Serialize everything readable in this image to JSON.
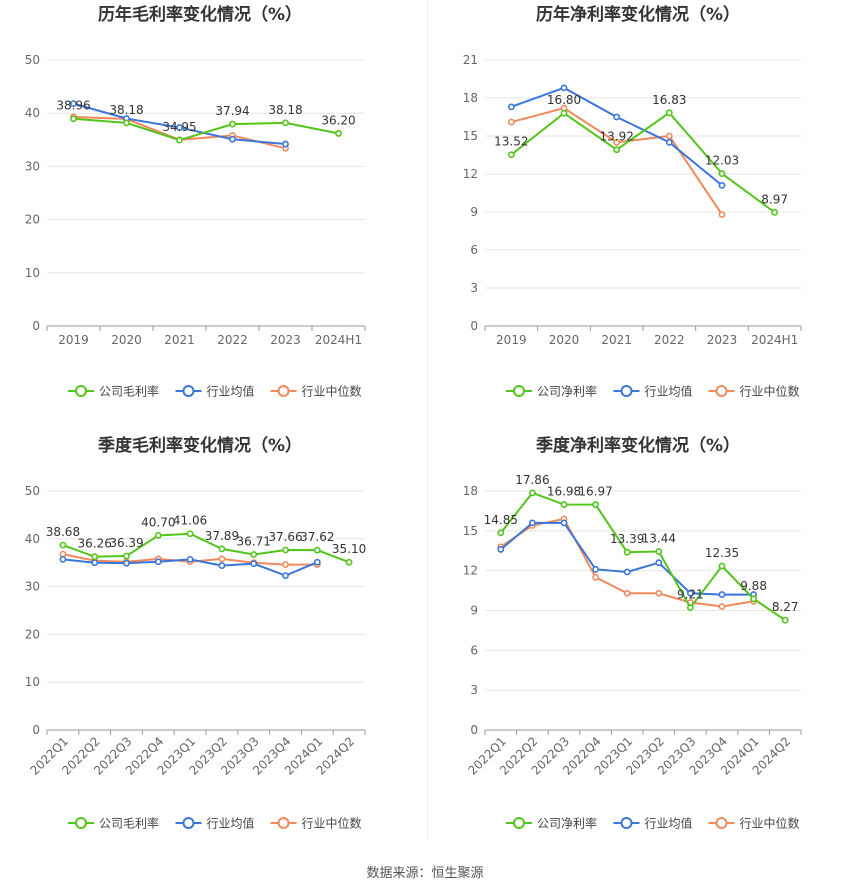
{
  "source_label": "数据来源：恒生聚源",
  "colors": {
    "company": "#52c41a",
    "avg": "#3a75d8",
    "median": "#f08a5d",
    "grid": "#e6e6e6",
    "axis": "#666666",
    "label": "#333333"
  },
  "chart_data": [
    {
      "id": "annual-gross",
      "type": "line",
      "title": "历年毛利率变化情况（%）",
      "categories": [
        "2019",
        "2020",
        "2021",
        "2022",
        "2023",
        "2024H1"
      ],
      "ylim": [
        0,
        50
      ],
      "yticks": [
        0,
        10,
        20,
        30,
        40,
        50
      ],
      "rotate_x": false,
      "series": [
        {
          "key": "company",
          "name": "公司毛利率",
          "values": [
            38.96,
            38.18,
            34.95,
            37.94,
            38.18,
            36.2
          ]
        },
        {
          "key": "avg",
          "name": "行业均值",
          "values": [
            41.8,
            39.0,
            37.3,
            35.1,
            34.2,
            null
          ]
        },
        {
          "key": "median",
          "name": "行业中位数",
          "values": [
            39.3,
            38.9,
            35.0,
            35.8,
            33.4,
            null
          ]
        }
      ],
      "data_labels": [
        "38.96",
        "38.18",
        "34.95",
        "37.94",
        "38.18",
        "36.20"
      ]
    },
    {
      "id": "annual-net",
      "type": "line",
      "title": "历年净利率变化情况（%）",
      "categories": [
        "2019",
        "2020",
        "2021",
        "2022",
        "2023",
        "2024H1"
      ],
      "ylim": [
        0,
        21
      ],
      "yticks": [
        0,
        3,
        6,
        9,
        12,
        15,
        18,
        21
      ],
      "rotate_x": false,
      "series": [
        {
          "key": "company",
          "name": "公司净利率",
          "values": [
            13.52,
            16.8,
            13.92,
            16.83,
            12.03,
            8.97
          ]
        },
        {
          "key": "avg",
          "name": "行业均值",
          "values": [
            17.3,
            18.8,
            16.5,
            14.5,
            11.1,
            null
          ]
        },
        {
          "key": "median",
          "name": "行业中位数",
          "values": [
            16.1,
            17.2,
            14.5,
            15.0,
            8.8,
            null
          ]
        }
      ],
      "data_labels": [
        "13.52",
        "16.80",
        "13.92",
        "16.83",
        "12.03",
        "8.97"
      ]
    },
    {
      "id": "quarterly-gross",
      "type": "line",
      "title": "季度毛利率变化情况（%）",
      "categories": [
        "2022Q1",
        "2022Q2",
        "2022Q3",
        "2022Q4",
        "2023Q1",
        "2023Q2",
        "2023Q3",
        "2023Q4",
        "2024Q1",
        "2024Q2"
      ],
      "ylim": [
        0,
        50
      ],
      "yticks": [
        0,
        10,
        20,
        30,
        40,
        50
      ],
      "rotate_x": true,
      "series": [
        {
          "key": "company",
          "name": "公司毛利率",
          "values": [
            38.68,
            36.26,
            36.39,
            40.7,
            41.06,
            37.89,
            36.71,
            37.66,
            37.62,
            35.1
          ]
        },
        {
          "key": "avg",
          "name": "行业均值",
          "values": [
            35.7,
            35.0,
            34.9,
            35.2,
            35.7,
            34.4,
            34.8,
            32.3,
            35.1,
            null
          ]
        },
        {
          "key": "median",
          "name": "行业中位数",
          "values": [
            36.8,
            35.4,
            35.2,
            35.8,
            35.2,
            35.8,
            35.0,
            34.6,
            34.6,
            null
          ]
        }
      ],
      "data_labels": [
        "38.68",
        "36.26",
        "36.39",
        "40.70",
        "41.06",
        "37.89",
        "36.71",
        "37.66",
        "37.62",
        "35.10"
      ]
    },
    {
      "id": "quarterly-net",
      "type": "line",
      "title": "季度净利率变化情况（%）",
      "categories": [
        "2022Q1",
        "2022Q2",
        "2022Q3",
        "2022Q4",
        "2023Q1",
        "2023Q2",
        "2023Q3",
        "2023Q4",
        "2024Q1",
        "2024Q2"
      ],
      "ylim": [
        0,
        18
      ],
      "yticks": [
        0,
        3,
        6,
        9,
        12,
        15,
        18
      ],
      "rotate_x": true,
      "series": [
        {
          "key": "company",
          "name": "公司净利率",
          "values": [
            14.85,
            17.86,
            16.98,
            16.97,
            13.39,
            13.44,
            9.21,
            12.35,
            9.88,
            8.27
          ]
        },
        {
          "key": "avg",
          "name": "行业均值",
          "values": [
            13.6,
            15.6,
            15.6,
            12.1,
            11.9,
            12.6,
            10.3,
            10.2,
            10.2,
            null
          ]
        },
        {
          "key": "median",
          "name": "行业中位数",
          "values": [
            13.8,
            15.4,
            15.9,
            11.5,
            10.3,
            10.3,
            9.6,
            9.3,
            9.7,
            null
          ]
        }
      ],
      "data_labels": [
        "14.85",
        "17.86",
        "16.98",
        "16.97",
        "13.39",
        "13.44",
        "9.21",
        "12.35",
        "9.88",
        "8.27"
      ]
    }
  ]
}
